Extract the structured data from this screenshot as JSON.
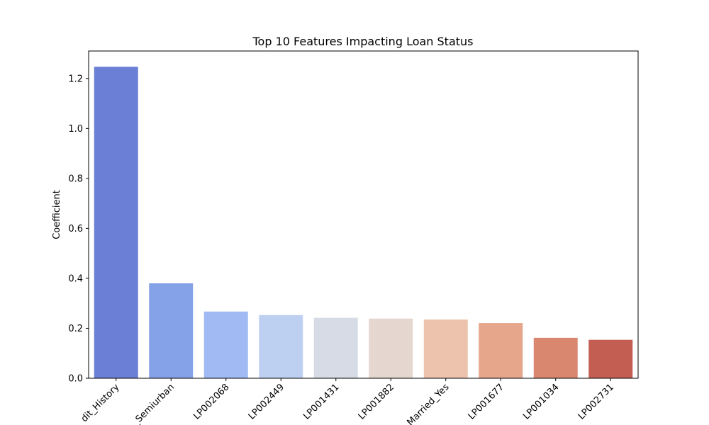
{
  "chart_data": {
    "type": "bar",
    "title": "Top 10 Features Impacting Loan Status",
    "xlabel": "",
    "ylabel": "Coefficient",
    "ylim": [
      0,
      1.31
    ],
    "yticks": [
      0.0,
      0.2,
      0.4,
      0.6,
      0.8,
      1.0,
      1.2
    ],
    "ytick_labels": [
      "0.0",
      "0.2",
      "0.4",
      "0.6",
      "0.8",
      "1.0",
      "1.2"
    ],
    "categories": [
      "Credit_History",
      "Property_Area_Semiurban",
      "LP002068",
      "LP002449",
      "LP001431",
      "LP001882",
      "Married_Yes",
      "LP001677",
      "LP001034",
      "LP002731"
    ],
    "visible_tick_labels": [
      "dit_History",
      "_Semiurban",
      "LP002068",
      "LP002449",
      "LP001431",
      "LP001882",
      "Married_Yes",
      "LP001677",
      "LP001034",
      "LP002731"
    ],
    "values": [
      1.247,
      0.38,
      0.267,
      0.253,
      0.242,
      0.239,
      0.235,
      0.221,
      0.162,
      0.154
    ],
    "colors": [
      "#6a7fd5",
      "#85a1e8",
      "#a1baf3",
      "#bed0f2",
      "#d7dbe5",
      "#e5d7cf",
      "#edc3ad",
      "#e6a68b",
      "#d9876f",
      "#c35e53"
    ],
    "grid": false,
    "legend": "none"
  }
}
